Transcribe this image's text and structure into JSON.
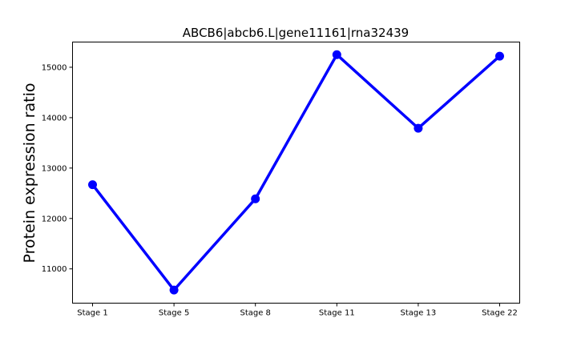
{
  "chart_data": {
    "type": "line",
    "title": "ABCB6|abcb6.L|gene11161|rna32439",
    "xlabel": "",
    "ylabel": "Protein expression ratio",
    "categories": [
      "Stage 1",
      "Stage 5",
      "Stage 8",
      "Stage 11",
      "Stage 13",
      "Stage 22"
    ],
    "series": [
      {
        "values": [
          12670,
          10580,
          12390,
          15250,
          13790,
          15220
        ],
        "color": "#0000ff"
      }
    ],
    "ylim": [
      10320,
      15500
    ],
    "yticks": [
      11000,
      12000,
      13000,
      14000,
      15000
    ],
    "grid": false,
    "legend": "none"
  }
}
